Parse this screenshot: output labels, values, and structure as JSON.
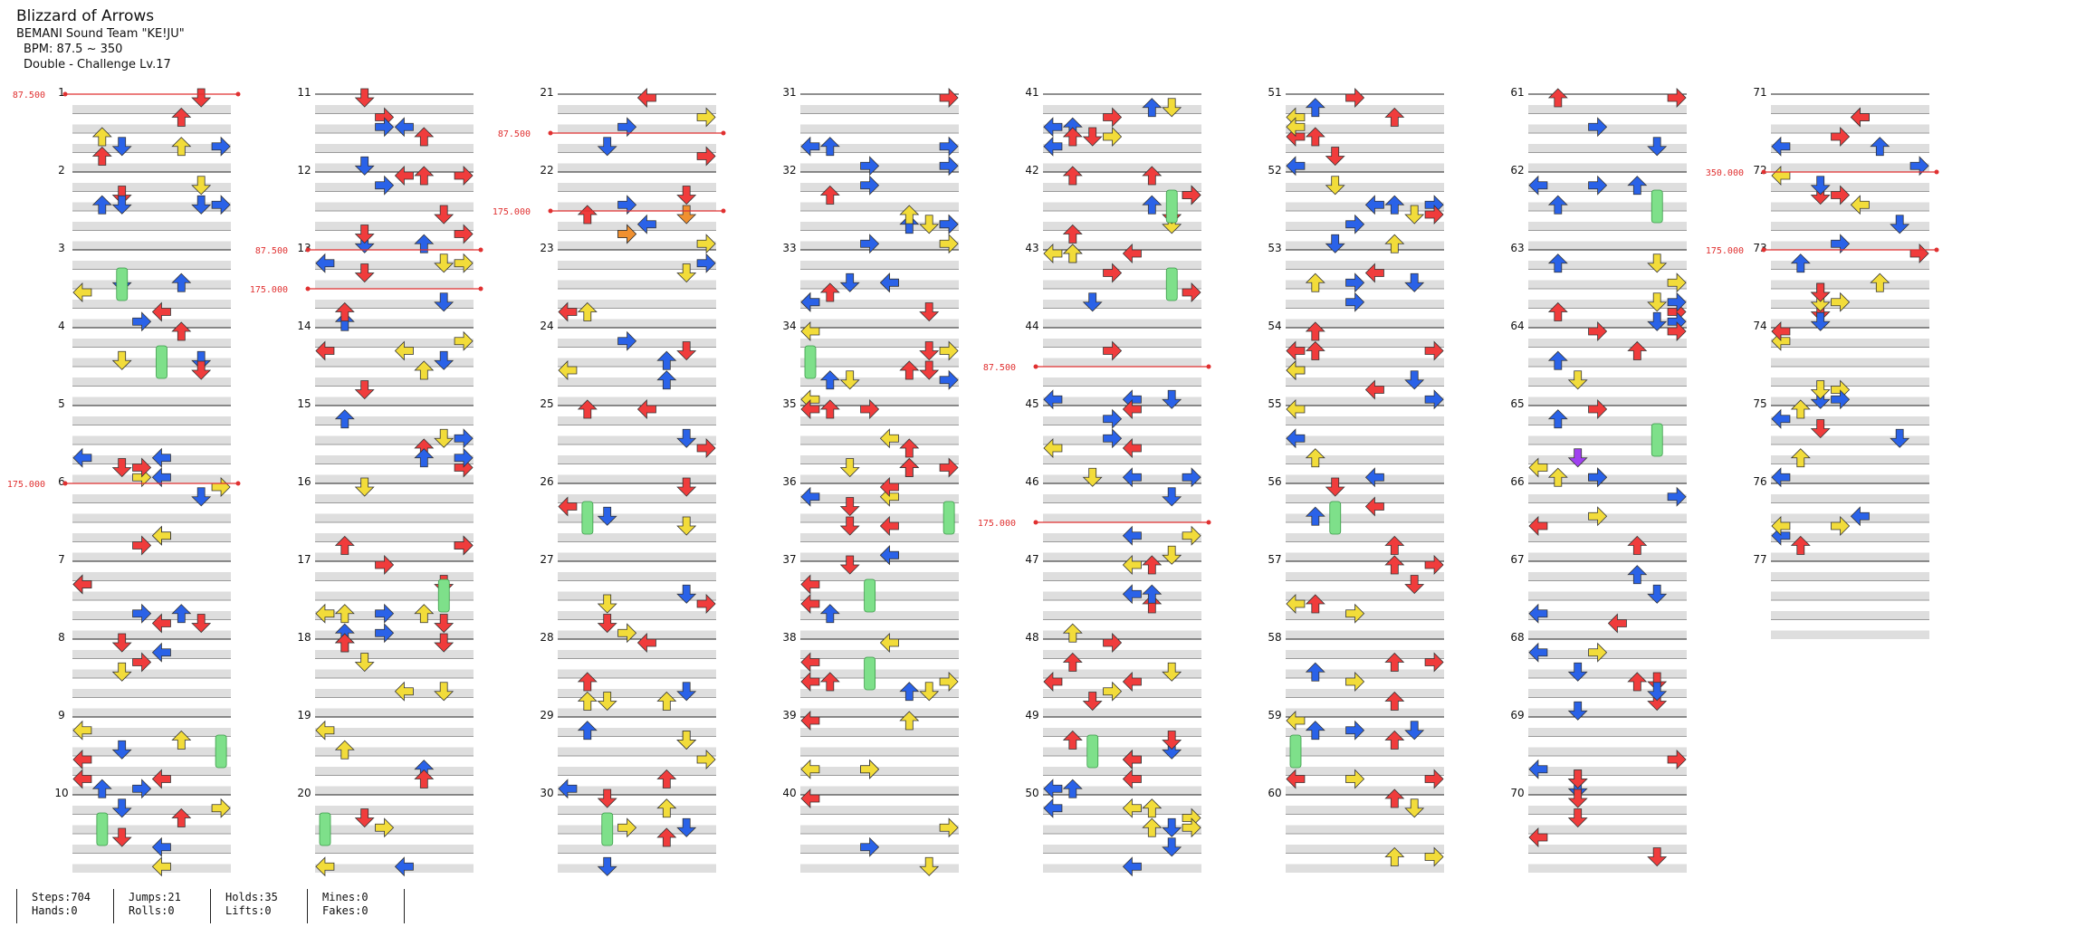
{
  "song": {
    "title": "Blizzard of Arrows",
    "artist": "BEMANI Sound Team \"KE!JU\"",
    "bpm": "BPM: 87.5 ~ 350",
    "difficulty": "Double - Challenge Lv.17"
  },
  "measure_count": 77,
  "bpm_markers": [
    {
      "measure": 1.0,
      "label": "87.500"
    },
    {
      "measure": 6.0,
      "label": "175.000"
    },
    {
      "measure": 13.0,
      "label": "87.500"
    },
    {
      "measure": 13.5,
      "label": "175.000"
    },
    {
      "measure": 21.5,
      "label": "87.500"
    },
    {
      "measure": 22.5,
      "label": "175.000"
    },
    {
      "measure": 44.5,
      "label": "87.500"
    },
    {
      "measure": 46.5,
      "label": "175.000"
    },
    {
      "measure": 72.0,
      "label": "350.000"
    },
    {
      "measure": 73.0,
      "label": "175.000"
    }
  ],
  "stats": [
    {
      "top": "Steps:704",
      "bottom": "Hands:0"
    },
    {
      "top": "Jumps:21",
      "bottom": "Rolls:0"
    },
    {
      "top": "Holds:35",
      "bottom": "Lifts:0"
    },
    {
      "top": "Mines:0",
      "bottom": "Fakes:0"
    }
  ],
  "colors": {
    "quarter": "#f03c3c",
    "eighth": "#2a62e8",
    "sixteenth": "#f2dc3a",
    "twentyfourth": "#a040f0",
    "twelfth": "#f09030",
    "hold": "#7ee08a",
    "bpm": "#e03030"
  }
}
